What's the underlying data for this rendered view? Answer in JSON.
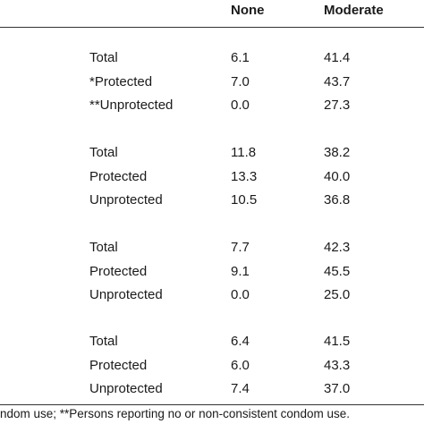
{
  "table": {
    "header": [
      "None",
      "Moderate"
    ],
    "groups": [
      [
        [
          "Total",
          "6.1",
          "41.4"
        ],
        [
          "*Protected",
          "7.0",
          "43.7"
        ],
        [
          "**Unprotected",
          "0.0",
          "27.3"
        ]
      ],
      [
        [
          "Total",
          "11.8",
          "38.2"
        ],
        [
          "Protected",
          "13.3",
          "40.0"
        ],
        [
          "Unprotected",
          "10.5",
          "36.8"
        ]
      ],
      [
        [
          "Total",
          "7.7",
          "42.3"
        ],
        [
          "Protected",
          "9.1",
          "45.5"
        ],
        [
          "Unprotected",
          "0.0",
          "25.0"
        ]
      ],
      [
        [
          "Total",
          "6.4",
          "41.5"
        ],
        [
          "Protected",
          "6.0",
          "43.3"
        ],
        [
          "Unprotected",
          "7.4",
          "37.0"
        ]
      ]
    ],
    "footnote": "ndom use; **Persons reporting no or non-consistent condom use."
  }
}
